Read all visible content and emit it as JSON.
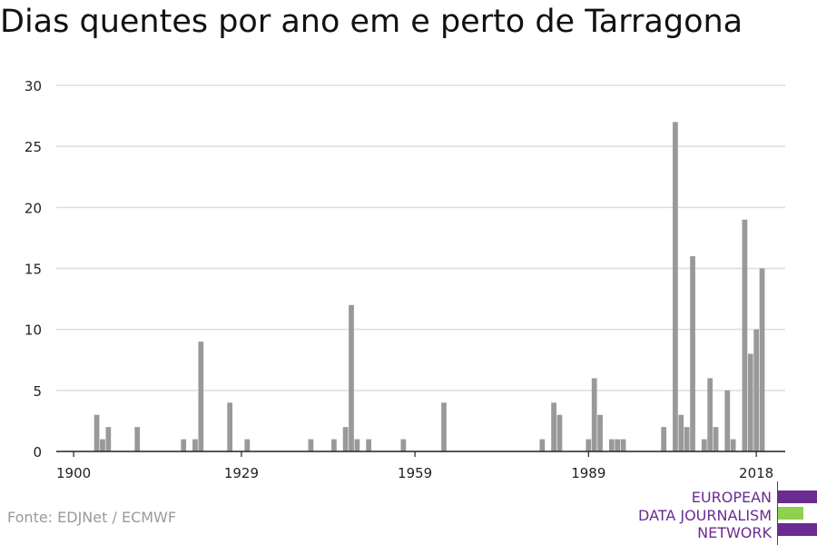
{
  "title": "Dias quentes por ano em e perto de Tarragona",
  "source": "Fonte: EDJNet / ECMWF",
  "logo": {
    "lines": [
      "EUROPEAN",
      "DATA JOURNALISM",
      "NETWORK"
    ],
    "colors": {
      "purple": "#6a2c91",
      "green": "#8fd14f"
    }
  },
  "colors": {
    "bar": "#999999",
    "grid": "#dddddd",
    "axis": "#222222"
  },
  "chart_data": {
    "type": "bar",
    "title": "Dias quentes por ano em e perto de Tarragona",
    "xlabel": "",
    "ylabel": "",
    "ylim": [
      0,
      30
    ],
    "yticks": [
      0,
      5,
      10,
      15,
      20,
      25,
      30
    ],
    "xticks": [
      1900,
      1929,
      1959,
      1989,
      2018
    ],
    "xlim": [
      1897,
      2023
    ],
    "grid": true,
    "x": [
      1900,
      1901,
      1902,
      1903,
      1904,
      1905,
      1906,
      1907,
      1908,
      1909,
      1910,
      1911,
      1912,
      1913,
      1914,
      1915,
      1916,
      1917,
      1918,
      1919,
      1920,
      1921,
      1922,
      1923,
      1924,
      1925,
      1926,
      1927,
      1928,
      1929,
      1930,
      1931,
      1932,
      1933,
      1934,
      1935,
      1936,
      1937,
      1938,
      1939,
      1940,
      1941,
      1942,
      1943,
      1944,
      1945,
      1946,
      1947,
      1948,
      1949,
      1950,
      1951,
      1952,
      1953,
      1954,
      1955,
      1956,
      1957,
      1958,
      1959,
      1960,
      1961,
      1962,
      1963,
      1964,
      1965,
      1966,
      1967,
      1968,
      1969,
      1970,
      1971,
      1972,
      1973,
      1974,
      1975,
      1976,
      1977,
      1978,
      1979,
      1980,
      1981,
      1982,
      1983,
      1984,
      1985,
      1986,
      1987,
      1988,
      1989,
      1990,
      1991,
      1992,
      1993,
      1994,
      1995,
      1996,
      1997,
      1998,
      1999,
      2000,
      2001,
      2002,
      2003,
      2004,
      2005,
      2006,
      2007,
      2008,
      2009,
      2010,
      2011,
      2012,
      2013,
      2014,
      2015,
      2016,
      2017,
      2018,
      2019
    ],
    "values": [
      0,
      0,
      0,
      0,
      3,
      1,
      2,
      0,
      0,
      0,
      0,
      2,
      0,
      0,
      0,
      0,
      0,
      0,
      0,
      1,
      0,
      1,
      9,
      0,
      0,
      0,
      0,
      4,
      0,
      0,
      1,
      0,
      0,
      0,
      0,
      0,
      0,
      0,
      0,
      0,
      0,
      1,
      0,
      0,
      0,
      1,
      0,
      2,
      12,
      1,
      0,
      1,
      0,
      0,
      0,
      0,
      0,
      1,
      0,
      0,
      0,
      0,
      0,
      0,
      4,
      0,
      0,
      0,
      0,
      0,
      0,
      0,
      0,
      0,
      0,
      0,
      0,
      0,
      0,
      0,
      0,
      1,
      0,
      4,
      3,
      0,
      0,
      0,
      0,
      1,
      6,
      3,
      0,
      1,
      1,
      1,
      0,
      0,
      0,
      0,
      0,
      0,
      2,
      0,
      27,
      3,
      2,
      16,
      0,
      1,
      6,
      2,
      0,
      5,
      1,
      0,
      19,
      8,
      10,
      15
    ]
  }
}
